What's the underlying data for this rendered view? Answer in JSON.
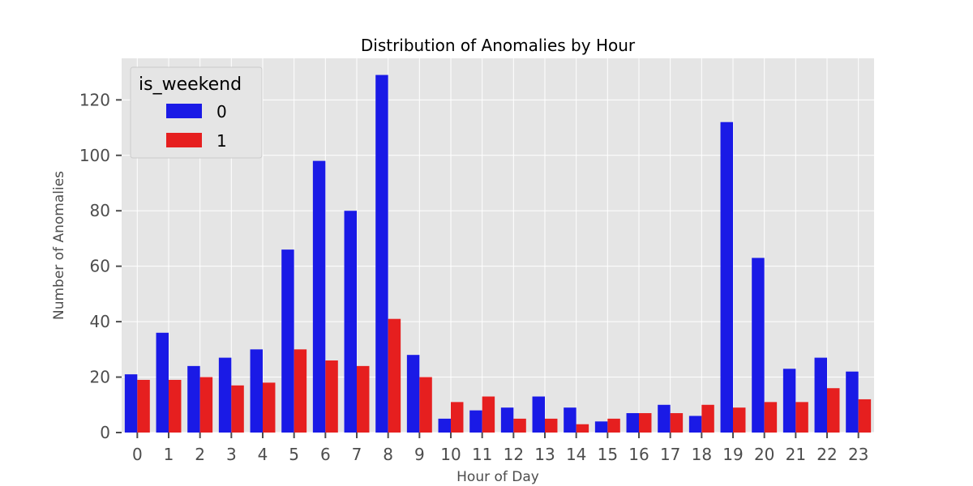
{
  "chart_data": {
    "type": "bar",
    "title": "Distribution of Anomalies by Hour",
    "xlabel": "Hour of Day",
    "ylabel": "Number of Anomalies",
    "categories": [
      "0",
      "1",
      "2",
      "3",
      "4",
      "5",
      "6",
      "7",
      "8",
      "9",
      "10",
      "11",
      "12",
      "13",
      "14",
      "15",
      "16",
      "17",
      "18",
      "19",
      "20",
      "21",
      "22",
      "23"
    ],
    "series": [
      {
        "name": "0",
        "color": "#1a1ae6",
        "values": [
          21,
          36,
          24,
          27,
          30,
          66,
          98,
          80,
          129,
          28,
          5,
          8,
          9,
          13,
          9,
          4,
          7,
          10,
          6,
          112,
          63,
          23,
          27,
          22
        ]
      },
      {
        "name": "1",
        "color": "#e61f1f",
        "values": [
          19,
          19,
          20,
          17,
          18,
          30,
          26,
          24,
          41,
          20,
          11,
          13,
          5,
          5,
          3,
          5,
          7,
          7,
          10,
          9,
          11,
          11,
          16,
          12
        ]
      }
    ],
    "legend": {
      "title": "is_weekend",
      "position": "top-left"
    },
    "ylim": [
      0,
      135
    ],
    "yticks": [
      0,
      20,
      40,
      60,
      80,
      100,
      120
    ],
    "grid": true,
    "style": "ggplot"
  }
}
